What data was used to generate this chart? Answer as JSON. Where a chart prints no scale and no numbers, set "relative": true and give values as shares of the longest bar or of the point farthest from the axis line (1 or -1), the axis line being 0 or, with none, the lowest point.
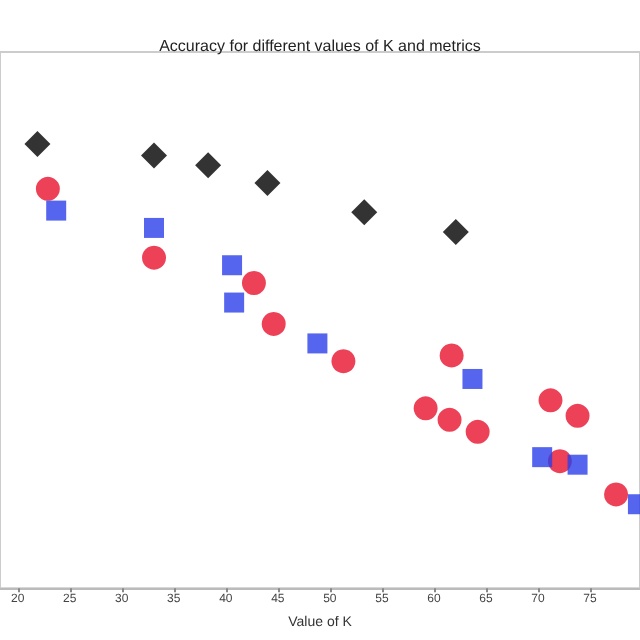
{
  "chart_data": {
    "type": "scatter",
    "title": "Accuracy for different values of K and metrics",
    "xlabel": "Value of K",
    "relative": true,
    "grid": false,
    "xlim": [
      18.3,
      79.8
    ],
    "xticks": [
      20,
      25,
      30,
      35,
      40,
      45,
      50,
      55,
      60,
      65,
      70,
      75
    ],
    "series": [
      {
        "color": "#000000",
        "marker": "diamond",
        "x": [
          21.9,
          33.1,
          38.3,
          44.0,
          53.3,
          62.1
        ],
        "values": [
          1.0,
          0.974,
          0.952,
          0.912,
          0.846,
          0.802
        ]
      },
      {
        "color": "#e8112d",
        "marker": "circle",
        "x": [
          22.9,
          33.1,
          42.7,
          44.6,
          51.3,
          61.7,
          59.2,
          61.5,
          64.2,
          71.2,
          73.8,
          72.1,
          77.5
        ],
        "values": [
          0.899,
          0.744,
          0.687,
          0.595,
          0.511,
          0.524,
          0.405,
          0.379,
          0.352,
          0.423,
          0.388,
          0.286,
          0.211
        ]
      },
      {
        "color": "#2a3fe8",
        "marker": "square",
        "x": [
          23.7,
          33.1,
          40.6,
          40.8,
          48.8,
          63.7,
          70.4,
          73.8,
          79.6
        ],
        "values": [
          0.85,
          0.811,
          0.727,
          0.643,
          0.551,
          0.471,
          0.295,
          0.278,
          0.189
        ]
      }
    ]
  }
}
